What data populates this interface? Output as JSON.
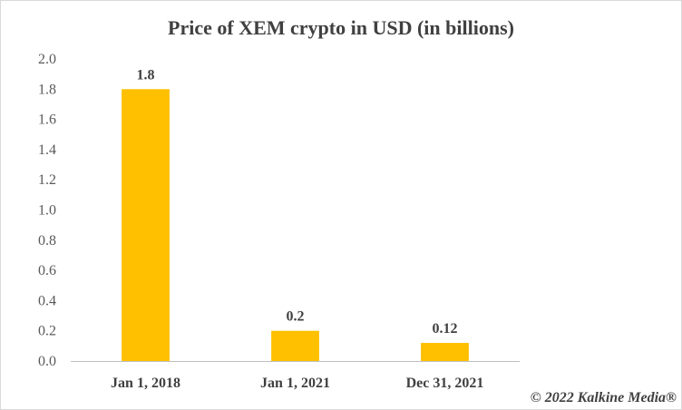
{
  "chart_data": {
    "type": "bar",
    "title": "Price of XEM crypto in USD (in billions)",
    "categories": [
      "Jan 1, 2018",
      "Jan 1, 2021",
      "Dec 31, 2021"
    ],
    "values": [
      1.8,
      0.2,
      0.12
    ],
    "data_labels": [
      "1.8",
      "0.2",
      "0.12"
    ],
    "ylim": [
      0,
      2.0
    ],
    "yticks": [
      "0.0",
      "0.2",
      "0.4",
      "0.6",
      "0.8",
      "1.0",
      "1.2",
      "1.4",
      "1.6",
      "1.8",
      "2.0"
    ],
    "grid": false,
    "bar_color": "#FFC000",
    "axis_color": "#BFBFBF"
  },
  "footer": {
    "copyright": "© 2022 Kalkine Media®"
  }
}
